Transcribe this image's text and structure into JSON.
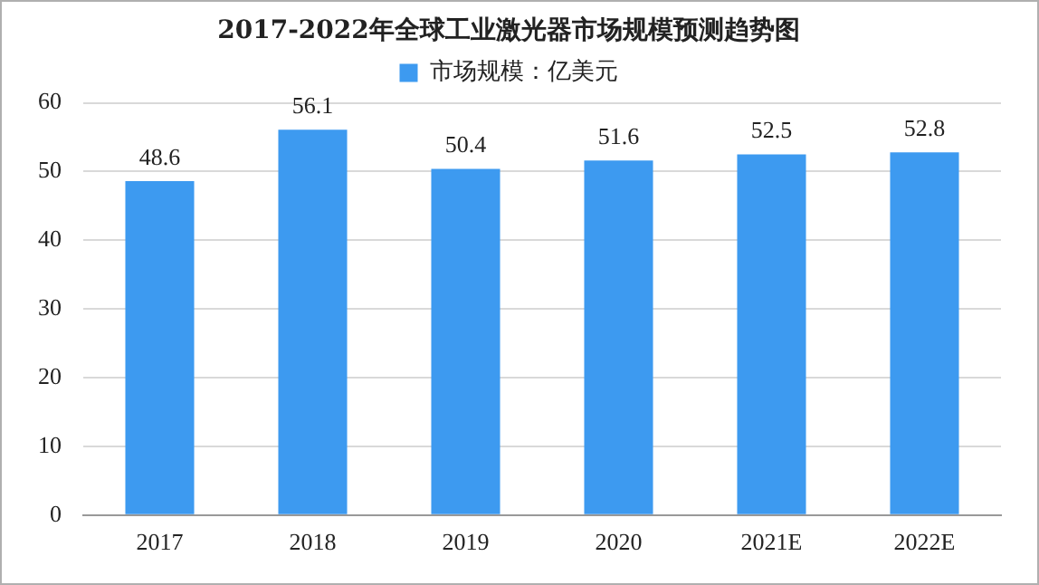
{
  "chart_data": {
    "type": "bar",
    "title": "2017-2022年全球工业激光器市场规模预测趋势图",
    "categories": [
      "2017",
      "2018",
      "2019",
      "2020",
      "2021E",
      "2022E"
    ],
    "series": [
      {
        "name": "市场规模：亿美元",
        "color": "#3d9af0",
        "values": [
          48.6,
          56.1,
          50.4,
          51.6,
          52.5,
          52.8
        ]
      }
    ],
    "ylim": [
      0,
      60
    ],
    "yticks": [
      0,
      10,
      20,
      30,
      40,
      50,
      60
    ],
    "grid": "y",
    "legend": "top",
    "data_labels": true
  }
}
